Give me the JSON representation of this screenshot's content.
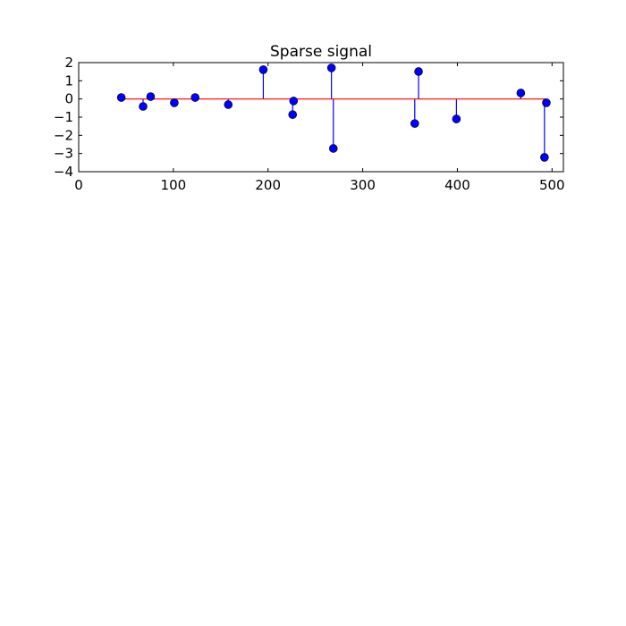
{
  "chart_data": {
    "type": "stem",
    "title": "Sparse signal",
    "xlabel": "",
    "ylabel": "",
    "xlim": [
      0,
      512
    ],
    "ylim": [
      -4,
      2
    ],
    "xticks": [
      0,
      100,
      200,
      300,
      400,
      500
    ],
    "yticks": [
      2,
      1,
      0,
      -1,
      -2,
      -3,
      -4
    ],
    "grid": false,
    "colors": {
      "stem": "#0000ff",
      "marker": "#0000ff",
      "baseline": "#ff0000"
    },
    "x": [
      45,
      68,
      76,
      101,
      123,
      158,
      195,
      226,
      227,
      267,
      269,
      355,
      359,
      399,
      467,
      492,
      494
    ],
    "y": [
      0.08,
      -0.41,
      0.13,
      -0.21,
      0.08,
      -0.31,
      1.61,
      -0.86,
      -0.11,
      1.71,
      -2.72,
      -1.35,
      1.51,
      -1.1,
      0.33,
      -3.21,
      -0.21
    ]
  }
}
